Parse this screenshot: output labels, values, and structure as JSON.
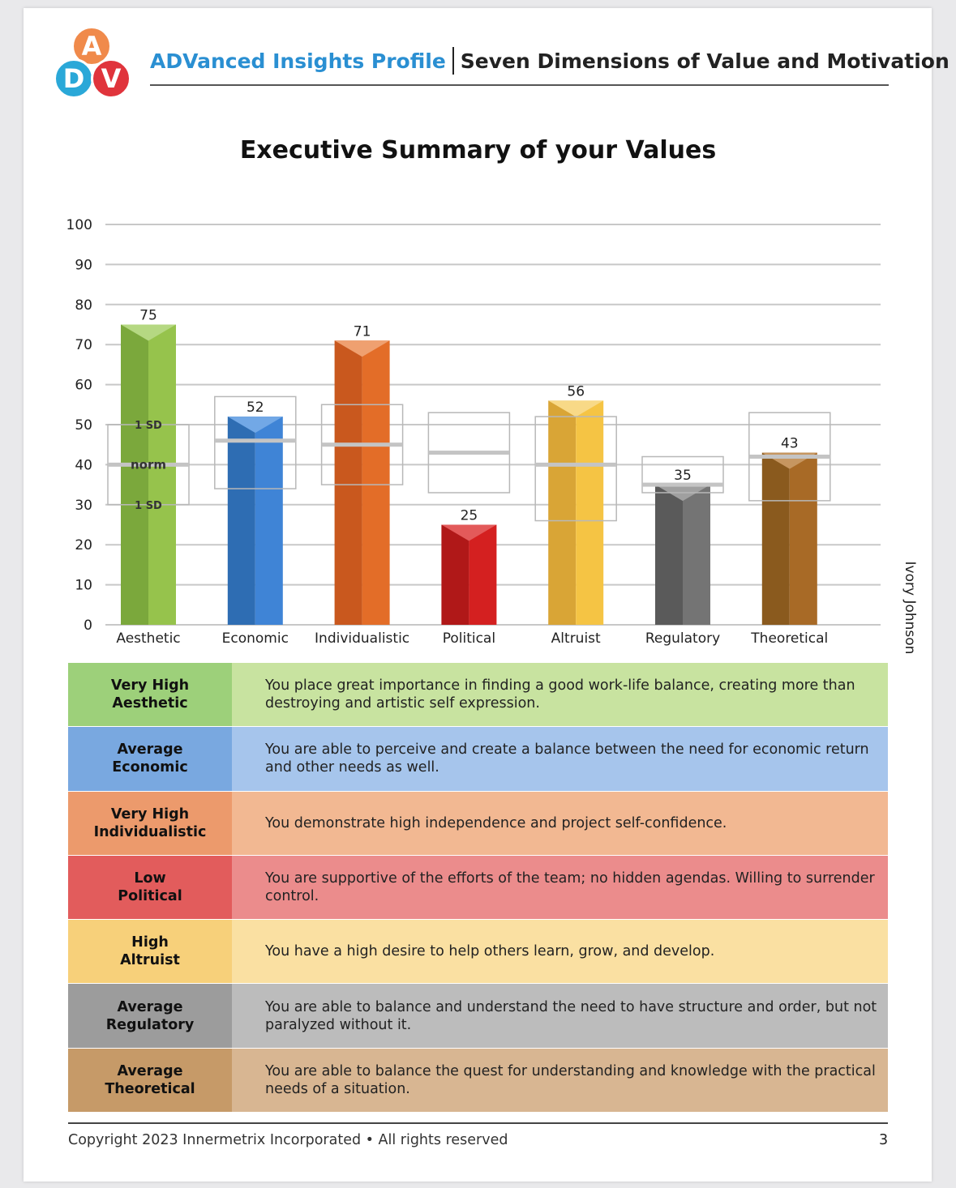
{
  "logo": {
    "letters": [
      "A",
      "D",
      "V"
    ],
    "colors": [
      "#f08a4b",
      "#2aa8d8",
      "#e0343c"
    ]
  },
  "header": {
    "brand": "ADVanced Insights Profile",
    "subtitle": "Seven Dimensions of Value and Motivation"
  },
  "title": "Executive Summary of your Values",
  "chart_data": {
    "type": "bar",
    "ylim": [
      0,
      100
    ],
    "yticks": [
      0,
      10,
      20,
      30,
      40,
      50,
      60,
      70,
      80,
      90,
      100
    ],
    "categories": [
      "Aesthetic",
      "Economic",
      "Individualistic",
      "Political",
      "Altruist",
      "Regulatory",
      "Theoretical"
    ],
    "values": [
      75,
      52,
      71,
      25,
      56,
      35,
      43
    ],
    "norms": [
      40,
      46,
      45,
      43,
      40,
      35,
      42
    ],
    "sd_ranges": [
      [
        30,
        50
      ],
      [
        34,
        57
      ],
      [
        35,
        55
      ],
      [
        33,
        53
      ],
      [
        26,
        52
      ],
      [
        33,
        42
      ],
      [
        31,
        53
      ]
    ],
    "colors": [
      {
        "dark": "#7ba83c",
        "light": "#96c34c",
        "cap": "#b5d882"
      },
      {
        "dark": "#2e6db3",
        "light": "#3f84d6",
        "cap": "#72a8e6"
      },
      {
        "dark": "#c9581e",
        "light": "#e36d28",
        "cap": "#efa070"
      },
      {
        "dark": "#b01818",
        "light": "#d42020",
        "cap": "#e35a5a"
      },
      {
        "dark": "#d9a536",
        "light": "#f5c444",
        "cap": "#f8d987"
      },
      {
        "dark": "#5a5a5a",
        "light": "#747474",
        "cap": "#a0a0a0"
      },
      {
        "dark": "#8a5a1e",
        "light": "#a86a26",
        "cap": "#c69660"
      }
    ],
    "annotations": {
      "sd_upper": "1 SD",
      "norm": "norm",
      "sd_lower": "1 SD"
    }
  },
  "side_name": "Ivory Johnson",
  "summary_rows": [
    {
      "level": "Very High",
      "dimension": "Aesthetic",
      "text": "You place great importance in finding a good work-life balance, creating more than destroying and artistic self expression.",
      "label_bg": "#9dd07a",
      "desc_bg": "#c8e3a0"
    },
    {
      "level": "Average",
      "dimension": "Economic",
      "text": "You are able to perceive and create a balance between the need for economic return and other needs as well.",
      "label_bg": "#79a8e0",
      "desc_bg": "#a6c5ec"
    },
    {
      "level": "Very High",
      "dimension": "Individualistic",
      "text": "You demonstrate high independence and project self-confidence.",
      "label_bg": "#ec9a6c",
      "desc_bg": "#f2b892"
    },
    {
      "level": "Low",
      "dimension": "Political",
      "text": "You are supportive of the efforts of the team; no hidden agendas. Willing to surrender control.",
      "label_bg": "#e25c5c",
      "desc_bg": "#eb8c8c"
    },
    {
      "level": "High",
      "dimension": "Altruist",
      "text": "You have a high desire to help others learn, grow, and develop.",
      "label_bg": "#f7d07a",
      "desc_bg": "#fae0a2"
    },
    {
      "level": "Average",
      "dimension": "Regulatory",
      "text": "You are able to balance and understand the need to have structure and order, but not paralyzed without it.",
      "label_bg": "#9c9c9c",
      "desc_bg": "#bcbcbc"
    },
    {
      "level": "Average",
      "dimension": "Theoretical",
      "text": "You are able to balance the quest for understanding and knowledge with the practical needs of a situation.",
      "label_bg": "#c69a68",
      "desc_bg": "#d8b692"
    }
  ],
  "footer": {
    "copyright": "Copyright 2023 Innermetrix Incorporated • All rights reserved",
    "page": "3"
  }
}
